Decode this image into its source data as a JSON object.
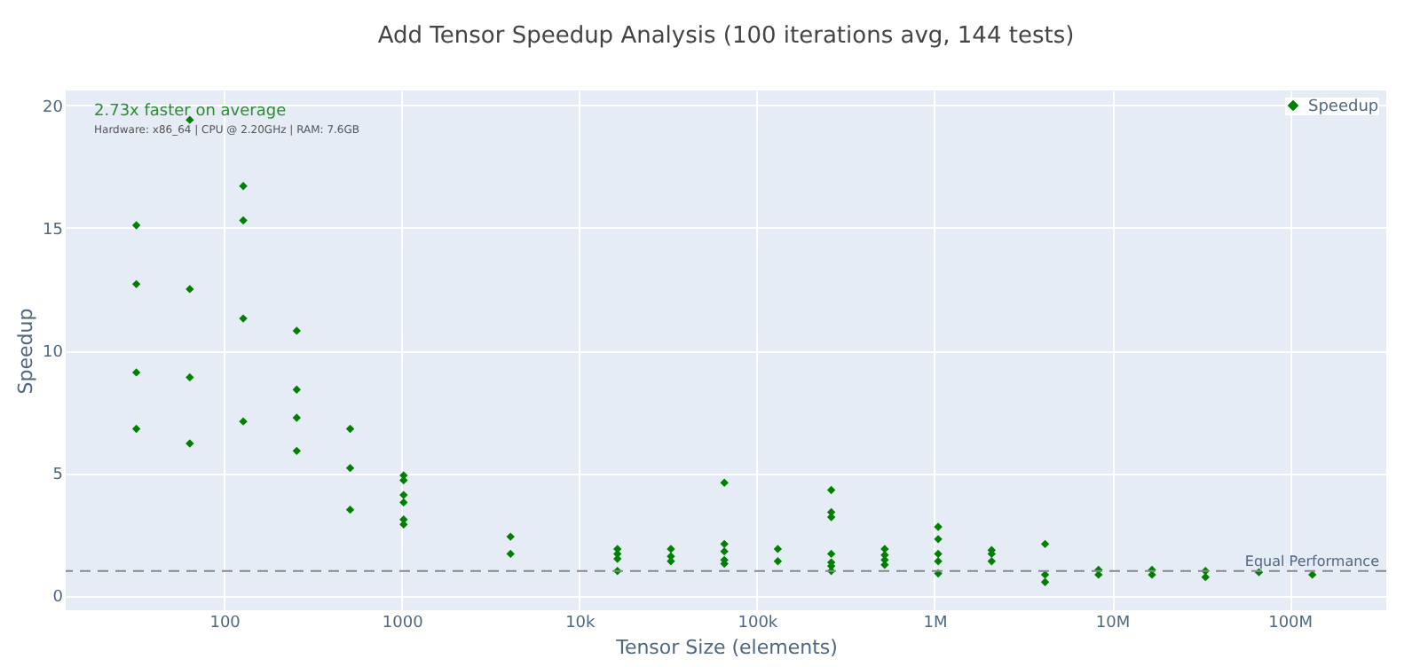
{
  "chart_data": {
    "type": "scatter",
    "title": "Add Tensor Speedup Analysis (100 iterations avg, 144 tests)",
    "xlabel": "Tensor Size (elements)",
    "ylabel": "Speedup",
    "annotations": [
      "2.73x faster on average",
      "Hardware: x86_64 | CPU @ 2.20GHz | RAM: 7.6GB"
    ],
    "log": "x",
    "xlim": [
      12.8,
      350000000
    ],
    "ylim": [
      -0.6,
      20.6
    ],
    "xticks": [
      100,
      1000,
      {
        "value": 10000,
        "label": "10k"
      },
      {
        "value": 100000,
        "label": "100k"
      },
      {
        "value": 1000000,
        "label": "1M"
      },
      {
        "value": 10000000,
        "label": "10M"
      },
      {
        "value": 100000000,
        "label": "100M"
      }
    ],
    "yticks": [
      0,
      5,
      10,
      15,
      20
    ],
    "grid": true,
    "legend": "top right",
    "marker": "diamond",
    "ref_lines": [
      {
        "axis": "y",
        "value": 1,
        "label": "Equal Performance",
        "color": "#888888",
        "line_style": "dashed"
      }
    ],
    "series": [
      {
        "name": "Speedup",
        "color": "#008000",
        "x": [
          32,
          32,
          32,
          32,
          64,
          64,
          64,
          64,
          128,
          128,
          128,
          128,
          256,
          256,
          256,
          256,
          512,
          512,
          512,
          1024,
          1024,
          1024,
          1024,
          1024,
          1024,
          4096,
          4096,
          16384,
          16384,
          16384,
          16384,
          32768,
          32768,
          32768,
          65536,
          65536,
          65536,
          65536,
          65536,
          131072,
          131072,
          262144,
          262144,
          262144,
          262144,
          262144,
          262144,
          262144,
          524288,
          524288,
          524288,
          524288,
          1048576,
          1048576,
          1048576,
          1048576,
          1048576,
          2097152,
          2097152,
          2097152,
          4194304,
          4194304,
          4194304,
          8388608,
          8388608,
          16777216,
          16777216,
          33554432,
          33554432,
          67108864,
          134217728
        ],
        "values": [
          15.1,
          12.7,
          9.1,
          6.8,
          19.4,
          12.5,
          8.9,
          6.2,
          16.7,
          15.3,
          11.3,
          7.1,
          10.8,
          8.4,
          7.25,
          5.9,
          6.8,
          5.2,
          3.5,
          4.9,
          4.7,
          4.1,
          3.8,
          3.1,
          2.9,
          2.4,
          1.7,
          1.9,
          1.7,
          1.5,
          1.0,
          1.9,
          1.6,
          1.4,
          4.6,
          2.1,
          1.8,
          1.45,
          1.3,
          1.9,
          1.4,
          4.3,
          3.4,
          3.2,
          1.7,
          1.35,
          1.2,
          1.0,
          1.9,
          1.65,
          1.45,
          1.25,
          2.8,
          2.3,
          1.7,
          1.4,
          0.9,
          1.85,
          1.7,
          1.4,
          2.1,
          0.85,
          0.55,
          1.05,
          0.85,
          1.05,
          0.85,
          1.0,
          0.75,
          0.95,
          0.85
        ]
      }
    ]
  }
}
